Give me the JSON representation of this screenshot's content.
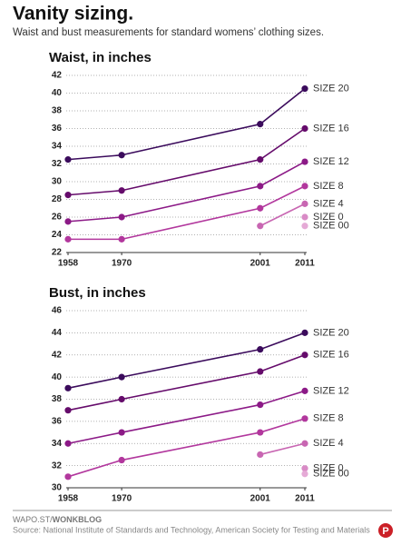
{
  "title": "Vanity sizing.",
  "subtitle": "Waist and bust measurements for standard womens’ clothing sizes.",
  "footer": {
    "site": "WAPO.ST/",
    "blog": "WONKBLOG",
    "source": "Source: National Institute of Standards and Technology, American Society for Testing and Materials"
  },
  "chart_data": [
    {
      "type": "line",
      "title": "Waist, in inches",
      "x": [
        1958,
        1970,
        2001,
        2011
      ],
      "xlim": [
        1958,
        2011
      ],
      "xticks": [
        1958,
        1970,
        2001,
        2011
      ],
      "ylim": [
        22,
        42
      ],
      "yticks": [
        22,
        24,
        26,
        28,
        30,
        32,
        34,
        36,
        38,
        40,
        42
      ],
      "grid": true,
      "series": [
        {
          "name": "SIZE 20",
          "color": "#3b0b5c",
          "values": [
            32.5,
            33,
            36.5,
            40.5
          ]
        },
        {
          "name": "SIZE 16",
          "color": "#650b6b",
          "values": [
            28.5,
            29,
            32.5,
            36
          ]
        },
        {
          "name": "SIZE 12",
          "color": "#8c1a87",
          "values": [
            25.5,
            26,
            29.5,
            32.25
          ]
        },
        {
          "name": "SIZE 8",
          "color": "#b2379d",
          "values": [
            23.5,
            23.5,
            27,
            29.5
          ]
        },
        {
          "name": "SIZE 4",
          "color": "#c866b2",
          "values": [
            null,
            null,
            25,
            27.5
          ]
        },
        {
          "name": "SIZE 0",
          "color": "#d98bc6",
          "values": [
            null,
            null,
            null,
            26
          ]
        },
        {
          "name": "SIZE 00",
          "color": "#e5aad6",
          "values": [
            null,
            null,
            null,
            25
          ]
        }
      ]
    },
    {
      "type": "line",
      "title": "Bust, in inches",
      "x": [
        1958,
        1970,
        2001,
        2011
      ],
      "xlim": [
        1958,
        2011
      ],
      "xticks": [
        1958,
        1970,
        2001,
        2011
      ],
      "ylim": [
        30,
        46
      ],
      "yticks": [
        30,
        32,
        34,
        36,
        38,
        40,
        42,
        44,
        46
      ],
      "grid": true,
      "series": [
        {
          "name": "SIZE 20",
          "color": "#3b0b5c",
          "values": [
            39,
            40,
            42.5,
            44
          ]
        },
        {
          "name": "SIZE 16",
          "color": "#650b6b",
          "values": [
            37,
            38,
            40.5,
            42
          ]
        },
        {
          "name": "SIZE 12",
          "color": "#8c1a87",
          "values": [
            34,
            35,
            37.5,
            38.75
          ]
        },
        {
          "name": "SIZE 8",
          "color": "#b2379d",
          "values": [
            31,
            32.5,
            35,
            36.25
          ]
        },
        {
          "name": "SIZE 4",
          "color": "#c866b2",
          "values": [
            null,
            null,
            33,
            34
          ]
        },
        {
          "name": "SIZE 0",
          "color": "#d98bc6",
          "values": [
            null,
            null,
            null,
            31.75
          ]
        },
        {
          "name": "SIZE 00",
          "color": "#e5aad6",
          "values": [
            null,
            null,
            null,
            31.25
          ]
        }
      ]
    }
  ]
}
